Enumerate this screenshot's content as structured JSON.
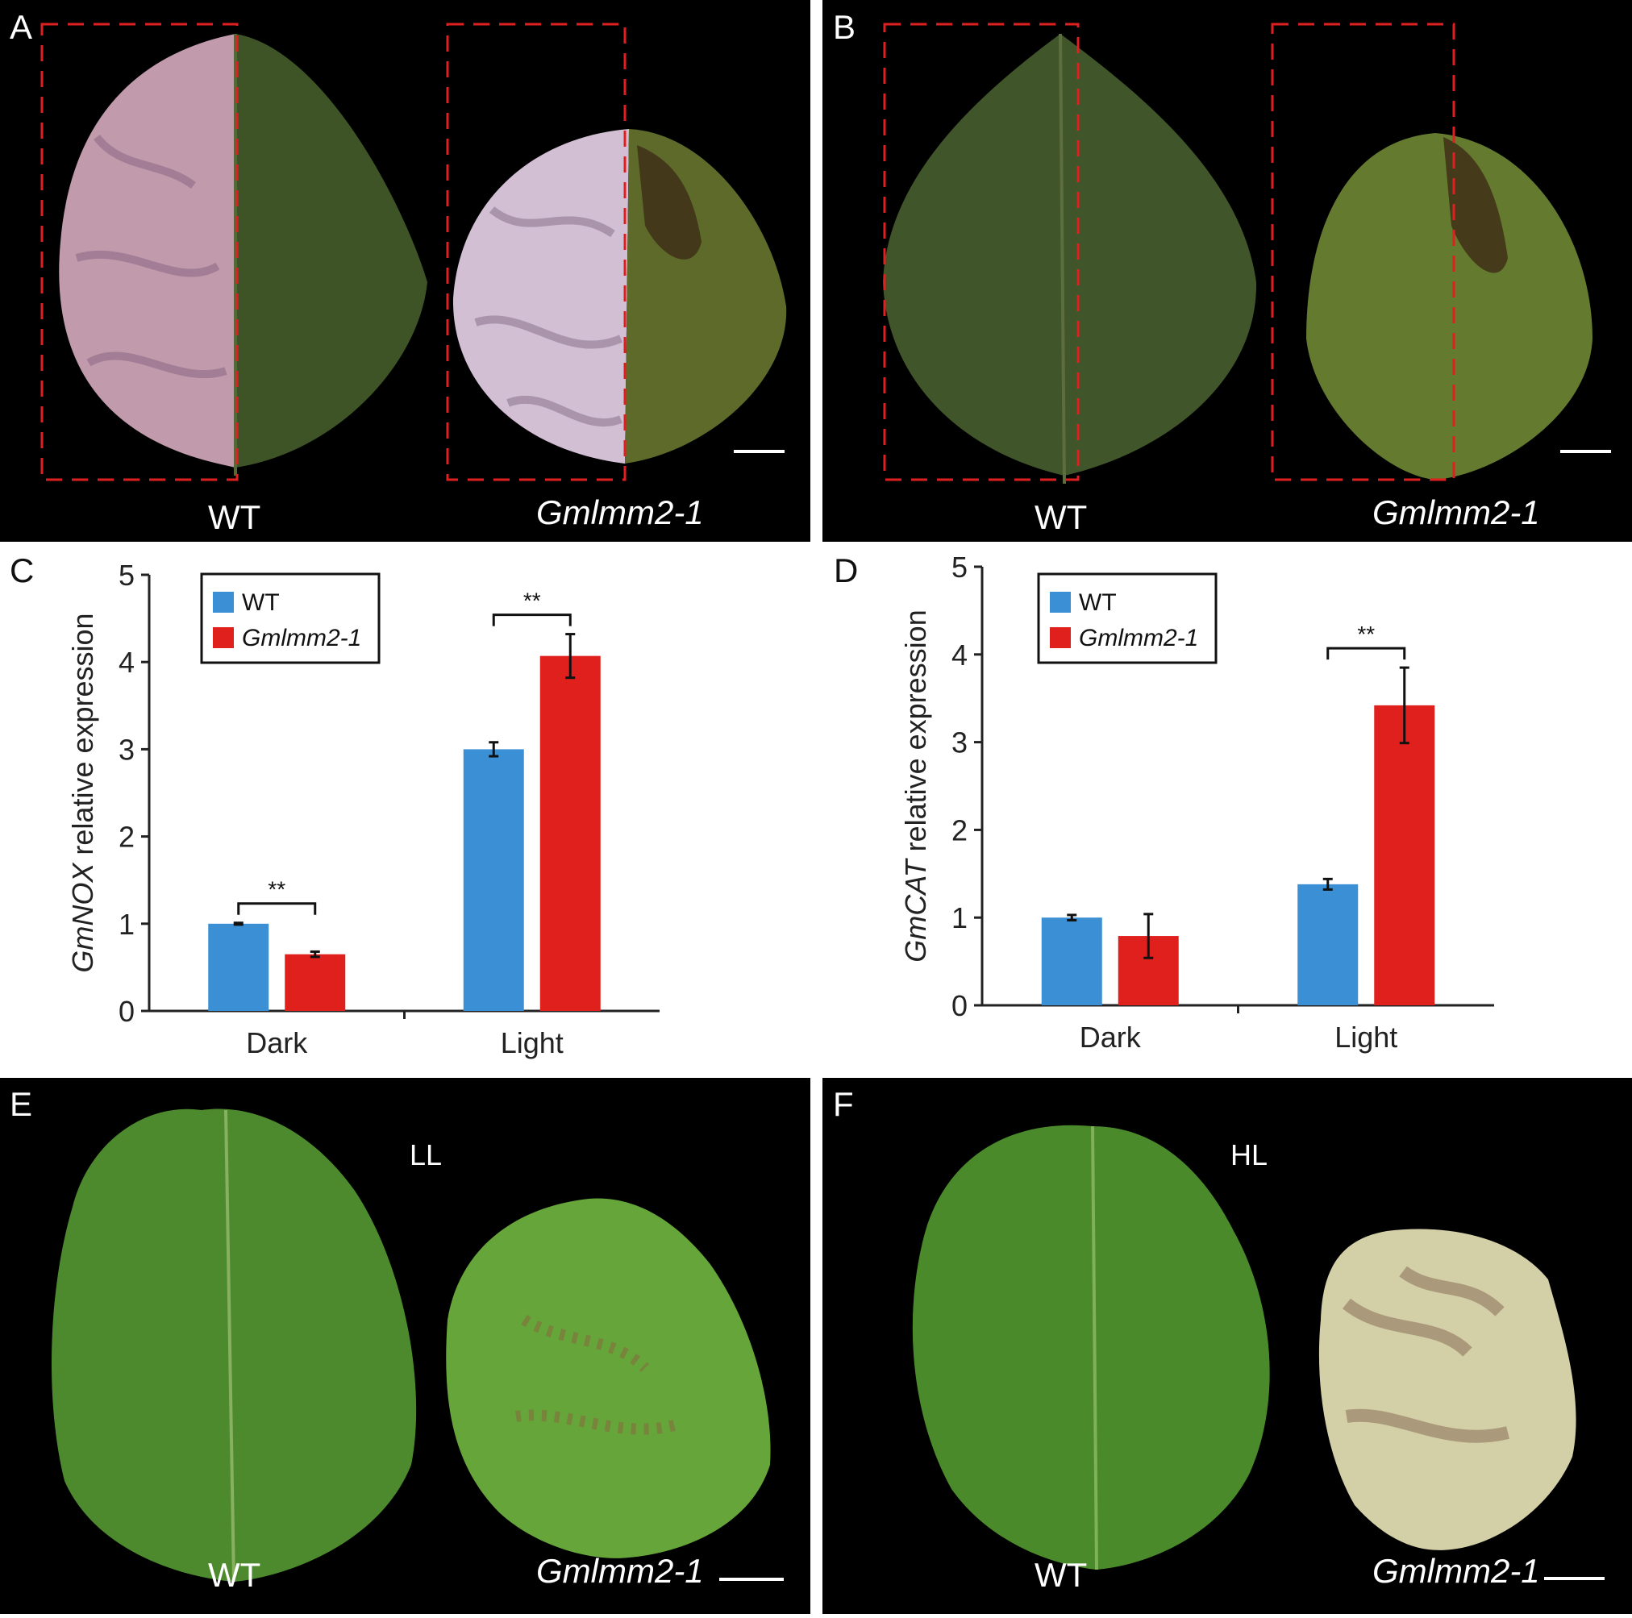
{
  "panels": {
    "A": {
      "letter": "A",
      "wt": "WT",
      "mutant": "Gmlmm2-1"
    },
    "B": {
      "letter": "B",
      "wt": "WT",
      "mutant": "Gmlmm2-1"
    },
    "C": {
      "letter": "C"
    },
    "D": {
      "letter": "D"
    },
    "E": {
      "letter": "E",
      "wt": "WT",
      "mutant": "Gmlmm2-1",
      "condition": "LL"
    },
    "F": {
      "letter": "F",
      "wt": "WT",
      "mutant": "Gmlmm2-1",
      "condition": "HL"
    }
  },
  "colors": {
    "wt": "#3b8fd4",
    "mutant": "#e0201d",
    "leaf_dark": "#3e5426",
    "leaf_bright": "#4f8a2c",
    "foil": "#c9a6b8",
    "dash": "#e02020"
  },
  "chart_data": [
    {
      "panel": "C",
      "type": "bar",
      "categories": [
        "Dark",
        "Light"
      ],
      "ylabel_italic": "GmNOX",
      "ylabel_rest": " relative  expression",
      "ylim": [
        0,
        5
      ],
      "yticks": [
        0,
        1,
        2,
        3,
        4,
        5
      ],
      "legend_position": "top-left",
      "series": [
        {
          "name": "WT",
          "values": [
            1.0,
            3.0
          ],
          "errors": [
            0.01,
            0.08
          ]
        },
        {
          "name": "Gmlmm2-1",
          "values": [
            0.65,
            4.07
          ],
          "errors": [
            0.03,
            0.25
          ]
        }
      ],
      "significance": [
        "**",
        "**"
      ]
    },
    {
      "panel": "D",
      "type": "bar",
      "categories": [
        "Dark",
        "Light"
      ],
      "ylabel_italic": "GmCAT",
      "ylabel_rest": " relative  expression",
      "ylim": [
        0,
        5
      ],
      "yticks": [
        0,
        1,
        2,
        3,
        4,
        5
      ],
      "legend_position": "top-left",
      "series": [
        {
          "name": "WT",
          "values": [
            1.0,
            1.38
          ],
          "errors": [
            0.03,
            0.06
          ]
        },
        {
          "name": "Gmlmm2-1",
          "values": [
            0.79,
            3.42
          ],
          "errors": [
            0.25,
            0.43
          ]
        }
      ],
      "significance": [
        "",
        "**"
      ]
    }
  ]
}
